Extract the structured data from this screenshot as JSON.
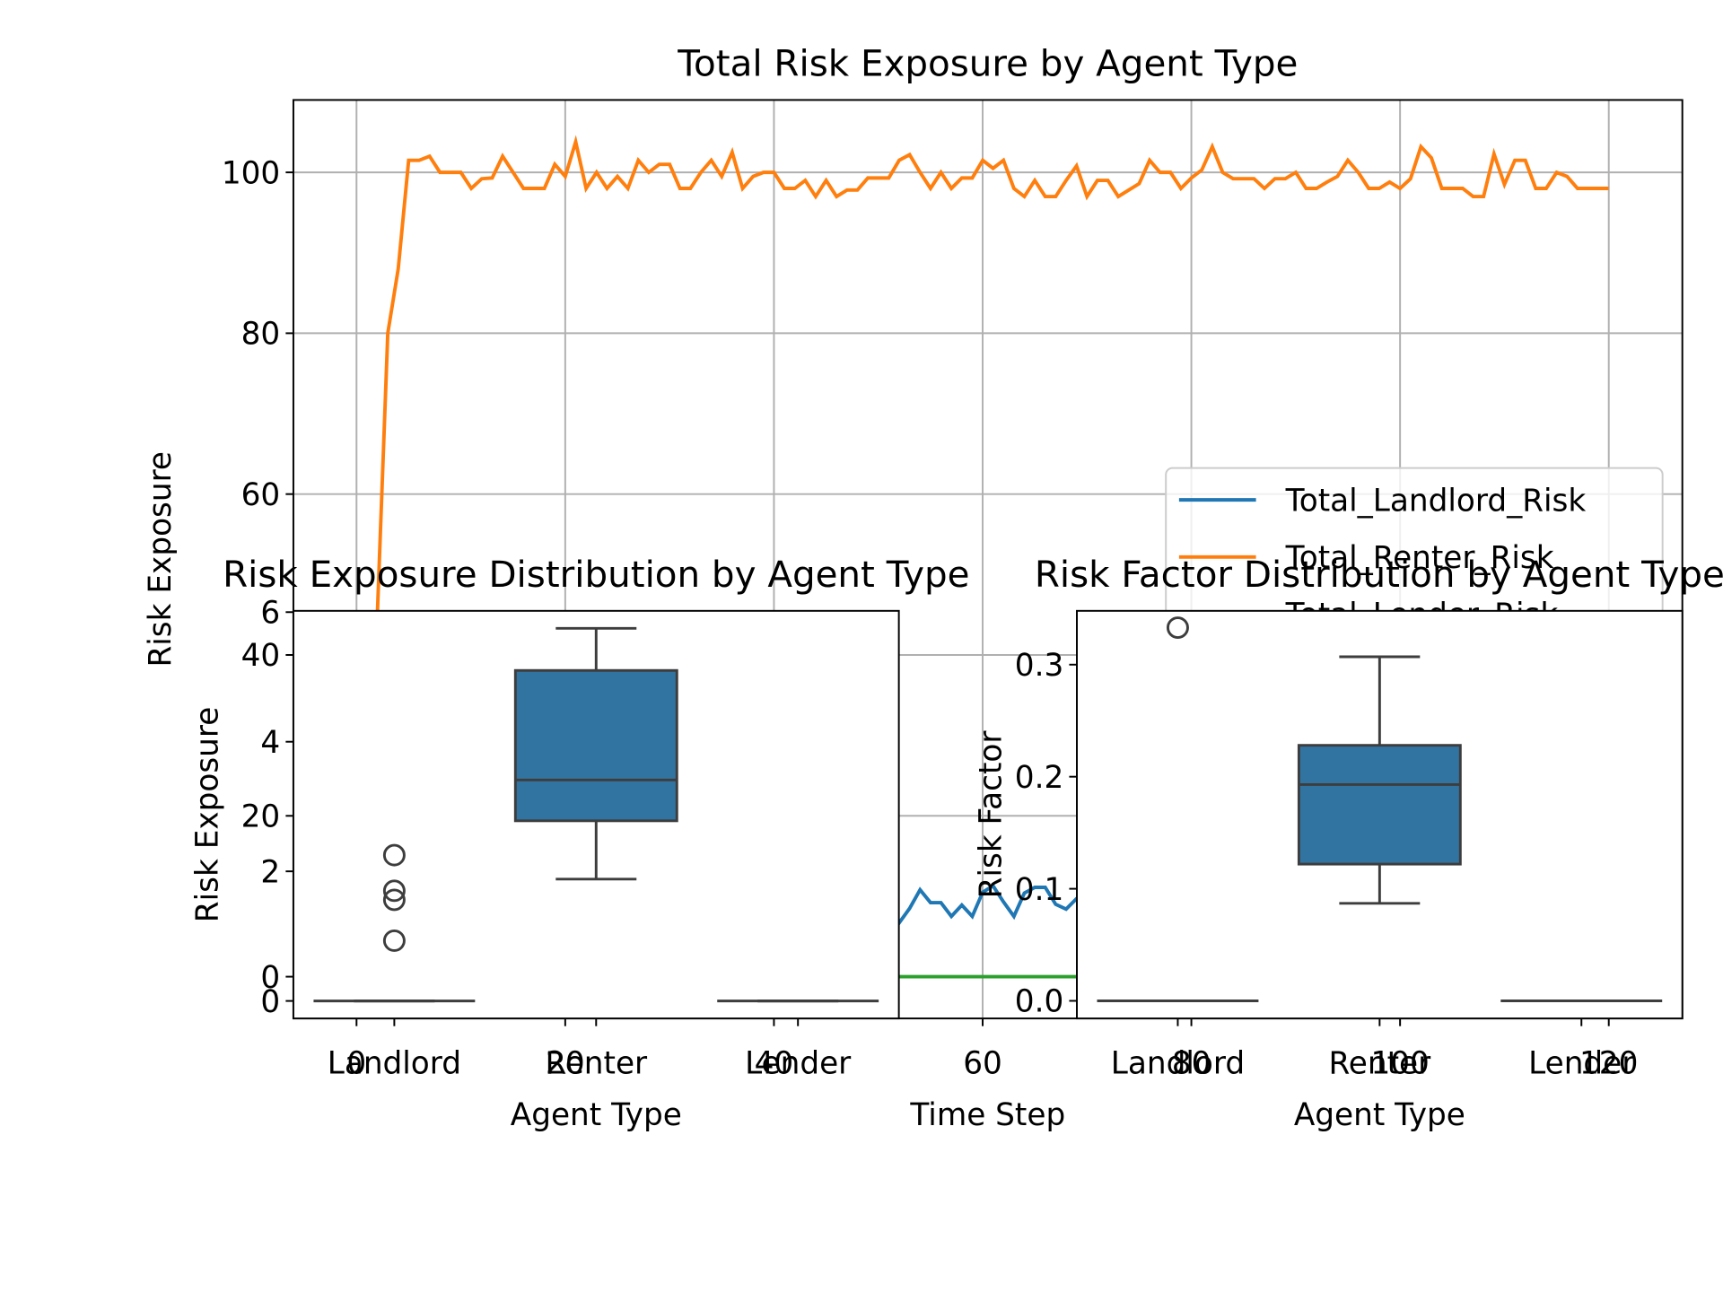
{
  "chart_data": [
    {
      "type": "line",
      "title": "Total Risk Exposure by Agent Type",
      "xlabel": "Time Step",
      "ylabel": "Risk Exposure",
      "x": [
        0,
        1,
        2,
        3,
        4,
        5,
        6,
        7,
        8,
        9,
        10,
        11,
        12,
        13,
        14,
        15,
        16,
        17,
        18,
        19,
        20,
        21,
        22,
        23,
        24,
        25,
        26,
        27,
        28,
        29,
        30,
        31,
        32,
        33,
        34,
        35,
        36,
        37,
        38,
        39,
        40,
        41,
        42,
        43,
        44,
        45,
        46,
        47,
        48,
        49,
        50,
        51,
        52,
        53,
        54,
        55,
        56,
        57,
        58,
        59,
        60,
        61,
        62,
        63,
        64,
        65,
        66,
        67,
        68,
        69,
        70,
        71,
        72,
        73,
        74,
        75,
        76,
        77,
        78,
        79,
        80,
        81,
        82,
        83,
        84,
        85,
        86,
        87,
        88,
        89,
        90,
        91,
        92,
        93,
        94,
        95,
        96,
        97,
        98,
        99,
        100,
        101,
        102,
        103,
        104,
        105,
        106,
        107,
        108,
        109,
        110,
        111,
        112,
        113,
        114,
        115,
        116,
        117,
        118,
        119,
        120
      ],
      "series": [
        {
          "name": "Total_Landlord_Risk",
          "color": "#1f77b4",
          "values": [
            9,
            9.5,
            8.7,
            10,
            9.2,
            8.5,
            10.4,
            9.8,
            9,
            8.6,
            9.7,
            10.2,
            9.3,
            8.8,
            9.9,
            10.5,
            9.1,
            8.7,
            9.6,
            10,
            9.4,
            8.9,
            10.3,
            9.6,
            9,
            8.5,
            9.8,
            10.6,
            9.2,
            8.8,
            9.5,
            10.1,
            9.7,
            8.6,
            9.3,
            10.4,
            9.9,
            9,
            8.7,
            9.6,
            10.2,
            9.1,
            8.9,
            9.8,
            10.3,
            9.4,
            8.6,
            9.5,
            10.5,
            9.2,
            8.8,
            8.7,
            6.7,
            8.5,
            10.8,
            9.2,
            9.2,
            7.5,
            8.9,
            7.5,
            10.5,
            11.3,
            9.3,
            7.5,
            10.4,
            11.1,
            11.1,
            9,
            8.4,
            9.7,
            10.1,
            9.3,
            8.8,
            9.9,
            10.4,
            9.1,
            8.6,
            9.6,
            10.2,
            9.4,
            8.9,
            10,
            9.5,
            8.7,
            9.8,
            10.3,
            9.2,
            8.8,
            9.6,
            10.1,
            9.3,
            8.5,
            9.9,
            10.6,
            9.1,
            8.9,
            9.7,
            10.2,
            9.4,
            8.6,
            9.5,
            10.4,
            9.8,
            9,
            8.7,
            9.6,
            10.3,
            9.2,
            8.8,
            9.9,
            10.1,
            9.4,
            8.6,
            9.5,
            10.5,
            9.3,
            8.9,
            9.7,
            10.2,
            9.1,
            9.4
          ]
        },
        {
          "name": "Total_Renter_Risk",
          "color": "#ff7f0e",
          "values": [
            0,
            20,
            45,
            80,
            88,
            101.5,
            101.5,
            102,
            100,
            100,
            100,
            98,
            99.2,
            99.3,
            102,
            100,
            98,
            98,
            98,
            101,
            99.5,
            103.8,
            98,
            100,
            98,
            99.5,
            98,
            101.5,
            100,
            101,
            101,
            98,
            98,
            100,
            101.5,
            99.5,
            102.5,
            98,
            99.5,
            100,
            100,
            98,
            98,
            99,
            97,
            99,
            97,
            97.8,
            97.8,
            99.3,
            99.3,
            99.3,
            101.5,
            102.2,
            100,
            98,
            100,
            98,
            99.3,
            99.3,
            101.5,
            100.5,
            101.5,
            98,
            97,
            99,
            97,
            97,
            99,
            100.8,
            97,
            99,
            99,
            97,
            97.8,
            98.6,
            101.5,
            100,
            100,
            98,
            99.3,
            100.3,
            103.2,
            100,
            99.2,
            99.2,
            99.2,
            98,
            99.2,
            99.2,
            100,
            98,
            98,
            98.8,
            99.5,
            101.5,
            100,
            98,
            98,
            98.8,
            98,
            99.2,
            103.2,
            101.8,
            98,
            98,
            98,
            97,
            97,
            102.3,
            98.5,
            101.5,
            101.5,
            98,
            98,
            100,
            99.5,
            98,
            98,
            98,
            98
          ]
        },
        {
          "name": "Total_Lender_Risk",
          "color": "#2ca02c",
          "values": [
            0,
            0,
            0,
            0,
            0,
            0,
            0,
            0,
            0,
            0,
            0,
            0,
            0,
            0,
            0,
            0,
            0,
            0,
            0,
            0,
            0,
            0,
            0,
            0,
            0,
            0,
            0,
            0,
            0,
            0,
            0,
            0,
            0,
            0,
            0,
            0,
            0,
            0,
            0,
            0,
            0,
            0,
            0,
            0,
            0,
            0,
            0,
            0,
            0,
            0,
            0,
            0,
            0,
            0,
            0,
            0,
            0,
            0,
            0,
            0,
            0,
            0,
            0,
            0,
            0,
            0,
            0,
            0,
            0,
            0,
            0,
            0,
            0,
            0,
            0,
            0,
            0,
            0,
            0,
            0,
            0,
            0,
            0,
            0,
            0,
            0,
            0,
            0,
            0,
            0,
            0,
            0,
            0,
            0,
            0,
            0,
            0,
            0,
            0,
            0,
            0,
            0,
            0,
            0,
            0,
            0,
            0,
            0,
            0,
            0,
            0,
            0,
            0,
            0,
            0,
            0,
            0,
            0,
            0,
            0,
            0
          ]
        }
      ],
      "xlim": [
        -6.05,
        127.05
      ],
      "ylim": [
        -5.19,
        109
      ],
      "xticks": [
        0,
        20,
        40,
        60,
        80,
        100,
        120
      ],
      "yticks": [
        0,
        20,
        40,
        60,
        80,
        100
      ],
      "grid": true,
      "legend": "upper right"
    },
    {
      "type": "box",
      "title": "Risk Exposure Distribution by Agent Type",
      "xlabel": "Agent Type",
      "ylabel": "Risk Exposure",
      "color": "#3274a1",
      "categories": [
        "Landlord",
        "Renter",
        "Lender"
      ],
      "boxes": [
        {
          "min": 0,
          "q1": 0,
          "median": 0,
          "q3": 0,
          "max": 0,
          "outliers": [
            2.25,
            1.7,
            1.56,
            0.93
          ]
        },
        {
          "min": 1.88,
          "q1": 2.78,
          "median": 3.41,
          "q3": 5.1,
          "max": 5.75,
          "outliers": []
        },
        {
          "min": 0,
          "q1": 0,
          "median": 0,
          "q3": 0,
          "max": 0,
          "outliers": []
        }
      ],
      "ylim": [
        -0.27,
        6.02
      ],
      "yticks": [
        0,
        2,
        4,
        6
      ]
    },
    {
      "type": "box",
      "title": "Risk Factor Distribution by Agent Type",
      "xlabel": "Agent Type",
      "ylabel": "Risk Factor",
      "color": "#3274a1",
      "categories": [
        "Landlord",
        "Renter",
        "Lender"
      ],
      "boxes": [
        {
          "min": 0,
          "q1": 0,
          "median": 0,
          "q3": 0,
          "max": 0,
          "outliers": [
            0.333
          ]
        },
        {
          "min": 0.087,
          "q1": 0.122,
          "median": 0.193,
          "q3": 0.228,
          "max": 0.307,
          "outliers": []
        },
        {
          "min": 0,
          "q1": 0,
          "median": 0,
          "q3": 0,
          "max": 0,
          "outliers": []
        }
      ],
      "ylim": [
        -0.0157,
        0.348
      ],
      "yticks": [
        {
          "value": 0,
          "label": "0.0"
        },
        {
          "value": 0.1,
          "label": "0.1"
        },
        {
          "value": 0.2,
          "label": "0.2"
        },
        {
          "value": 0.3,
          "label": "0.3"
        }
      ]
    }
  ]
}
